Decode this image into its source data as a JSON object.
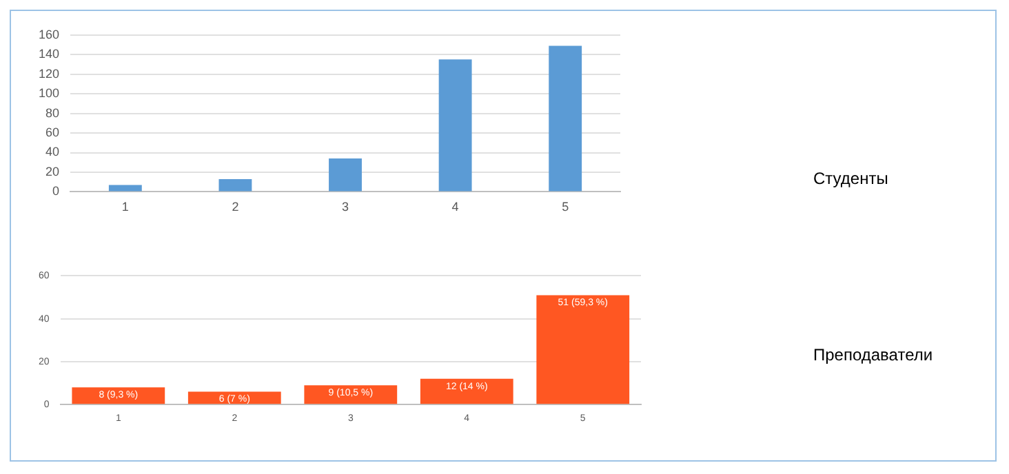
{
  "chart_data": [
    {
      "type": "bar",
      "annotations": [
        "Студенты"
      ],
      "categories": [
        "1",
        "2",
        "3",
        "4",
        "5"
      ],
      "values": [
        7,
        13,
        34,
        135,
        149
      ],
      "color": "#5b9bd5",
      "ylim": [
        0,
        160
      ],
      "yticks": [
        0,
        20,
        40,
        60,
        80,
        100,
        120,
        140,
        160
      ],
      "grid": "y"
    },
    {
      "type": "bar",
      "annotations": [
        "Преподаватели"
      ],
      "categories": [
        "1",
        "2",
        "3",
        "4",
        "5"
      ],
      "values": [
        8,
        6,
        9,
        12,
        51
      ],
      "color": "#ff5722",
      "ylim": [
        0,
        60
      ],
      "yticks": [
        0,
        20,
        40,
        60
      ],
      "grid": "y",
      "value_labels": [
        "8 (9,3 %)",
        "6 (7 %)",
        "9 (10,5 %)",
        "12 (14 %)",
        "51 (59,3 %)"
      ]
    }
  ]
}
